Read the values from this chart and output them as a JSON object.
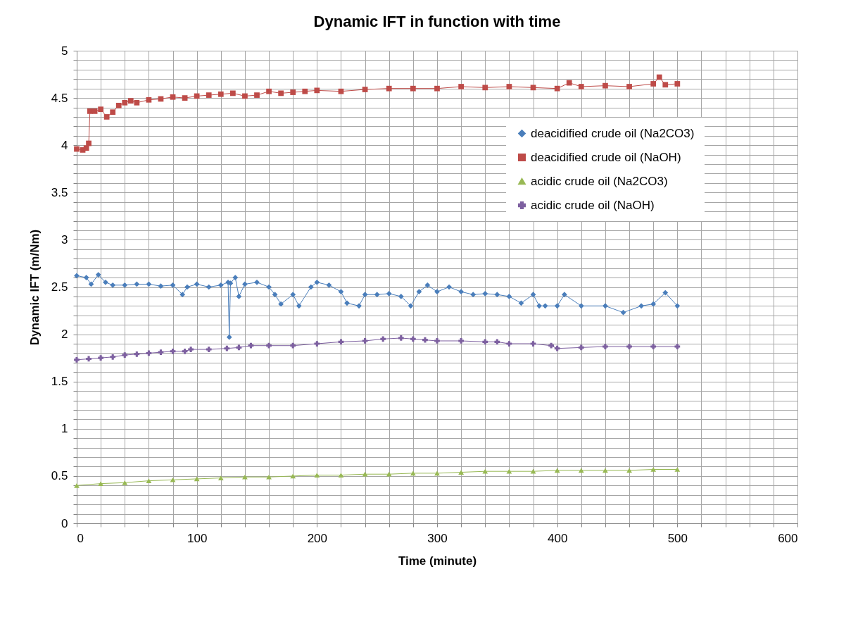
{
  "chart_data": {
    "type": "line",
    "title": "Dynamic IFT in function with time",
    "xlabel": "Time (minute)",
    "ylabel": "Dynamic IFT (m/Nm)",
    "xlim": [
      0,
      600
    ],
    "ylim": [
      0,
      5
    ],
    "xticks": [
      0,
      {
        "value": 20,
        "label": null
      },
      {
        "value": 40,
        "label": null
      },
      {
        "value": 60,
        "label": null
      },
      {
        "value": 80,
        "label": null
      },
      100,
      {
        "value": 120,
        "label": null
      },
      {
        "value": 140,
        "label": null
      },
      {
        "value": 160,
        "label": null
      },
      {
        "value": 180,
        "label": null
      },
      200,
      {
        "value": 220,
        "label": null
      },
      {
        "value": 240,
        "label": null
      },
      {
        "value": 260,
        "label": null
      },
      {
        "value": 280,
        "label": null
      },
      300,
      {
        "value": 320,
        "label": null
      },
      {
        "value": 340,
        "label": null
      },
      {
        "value": 360,
        "label": null
      },
      {
        "value": 380,
        "label": null
      },
      400,
      {
        "value": 420,
        "label": null
      },
      {
        "value": 440,
        "label": null
      },
      {
        "value": 460,
        "label": null
      },
      {
        "value": 480,
        "label": null
      },
      500,
      {
        "value": 520,
        "label": null
      },
      {
        "value": 540,
        "label": null
      },
      {
        "value": 560,
        "label": null
      },
      {
        "value": 580,
        "label": null
      },
      600
    ],
    "yticks": [
      0,
      {
        "value": 0.1,
        "label": null
      },
      {
        "value": 0.2,
        "label": null
      },
      {
        "value": 0.3,
        "label": null
      },
      {
        "value": 0.4,
        "label": null
      },
      0.5,
      {
        "value": 0.6,
        "label": null
      },
      {
        "value": 0.7,
        "label": null
      },
      {
        "value": 0.8,
        "label": null
      },
      {
        "value": 0.9,
        "label": null
      },
      1,
      {
        "value": 1.1,
        "label": null
      },
      {
        "value": 1.2,
        "label": null
      },
      {
        "value": 1.3,
        "label": null
      },
      {
        "value": 1.4,
        "label": null
      },
      1.5,
      {
        "value": 1.6,
        "label": null
      },
      {
        "value": 1.7,
        "label": null
      },
      {
        "value": 1.8,
        "label": null
      },
      {
        "value": 1.9,
        "label": null
      },
      2,
      {
        "value": 2.1,
        "label": null
      },
      {
        "value": 2.2,
        "label": null
      },
      {
        "value": 2.3,
        "label": null
      },
      {
        "value": 2.4,
        "label": null
      },
      2.5,
      {
        "value": 2.6,
        "label": null
      },
      {
        "value": 2.7,
        "label": null
      },
      {
        "value": 2.8,
        "label": null
      },
      {
        "value": 2.9,
        "label": null
      },
      3,
      {
        "value": 3.1,
        "label": null
      },
      {
        "value": 3.2,
        "label": null
      },
      {
        "value": 3.3,
        "label": null
      },
      {
        "value": 3.4,
        "label": null
      },
      3.5,
      {
        "value": 3.6,
        "label": null
      },
      {
        "value": 3.7,
        "label": null
      },
      {
        "value": 3.8,
        "label": null
      },
      {
        "value": 3.9,
        "label": null
      },
      4,
      {
        "value": 4.1,
        "label": null
      },
      {
        "value": 4.2,
        "label": null
      },
      {
        "value": 4.3,
        "label": null
      },
      {
        "value": 4.4,
        "label": null
      },
      4.5,
      {
        "value": 4.6,
        "label": null
      },
      {
        "value": 4.7,
        "label": null
      },
      {
        "value": 4.8,
        "label": null
      },
      {
        "value": 4.9,
        "label": null
      },
      5
    ],
    "grid": true,
    "legend": "right",
    "line_style": "solid",
    "series": [
      {
        "name": "deacidified crude oil (Na2CO3)",
        "color": "#4a7ebb",
        "marker": "diamond",
        "x": [
          0,
          8,
          12,
          18,
          24,
          30,
          40,
          50,
          60,
          70,
          80,
          88,
          92,
          100,
          110,
          120,
          126,
          127,
          128,
          132,
          135,
          140,
          150,
          160,
          165,
          170,
          180,
          185,
          195,
          200,
          210,
          220,
          225,
          235,
          240,
          250,
          260,
          270,
          278,
          285,
          292,
          300,
          310,
          320,
          330,
          340,
          350,
          360,
          370,
          380,
          385,
          390,
          400,
          406,
          420,
          440,
          455,
          470,
          480,
          490,
          500
        ],
        "values": [
          2.62,
          2.6,
          2.53,
          2.63,
          2.55,
          2.52,
          2.52,
          2.53,
          2.53,
          2.51,
          2.52,
          2.42,
          2.5,
          2.53,
          2.5,
          2.52,
          2.55,
          1.97,
          2.54,
          2.6,
          2.4,
          2.53,
          2.55,
          2.5,
          2.42,
          2.32,
          2.42,
          2.3,
          2.5,
          2.55,
          2.52,
          2.45,
          2.33,
          2.3,
          2.42,
          2.42,
          2.43,
          2.4,
          2.3,
          2.45,
          2.52,
          2.45,
          2.5,
          2.45,
          2.42,
          2.43,
          2.42,
          2.4,
          2.33,
          2.42,
          2.3,
          2.3,
          2.3,
          2.42,
          2.3,
          2.3,
          2.23,
          2.3,
          2.32,
          2.44,
          2.3
        ]
      },
      {
        "name": "deacidified crude oil (NaOH)",
        "color": "#be4b48",
        "marker": "square",
        "x": [
          0,
          5,
          8,
          10,
          11,
          15,
          20,
          25,
          30,
          35,
          40,
          45,
          50,
          60,
          70,
          80,
          90,
          100,
          110,
          120,
          130,
          140,
          150,
          160,
          170,
          180,
          190,
          200,
          220,
          240,
          260,
          280,
          300,
          320,
          340,
          360,
          380,
          400,
          410,
          420,
          440,
          460,
          480,
          485,
          490,
          500
        ],
        "values": [
          3.96,
          3.95,
          3.97,
          4.02,
          4.36,
          4.36,
          4.38,
          4.3,
          4.35,
          4.42,
          4.45,
          4.47,
          4.45,
          4.48,
          4.49,
          4.51,
          4.5,
          4.52,
          4.53,
          4.54,
          4.55,
          4.52,
          4.53,
          4.57,
          4.55,
          4.56,
          4.57,
          4.58,
          4.57,
          4.59,
          4.6,
          4.6,
          4.6,
          4.62,
          4.61,
          4.62,
          4.61,
          4.6,
          4.66,
          4.62,
          4.63,
          4.62,
          4.65,
          4.72,
          4.64,
          4.65
        ]
      },
      {
        "name": "acidic crude oil (Na2CO3)",
        "color": "#98b954",
        "marker": "triangle",
        "x": [
          0,
          20,
          40,
          60,
          80,
          100,
          120,
          140,
          160,
          180,
          200,
          220,
          240,
          260,
          280,
          300,
          320,
          340,
          360,
          380,
          400,
          420,
          440,
          460,
          480,
          500
        ],
        "values": [
          0.4,
          0.42,
          0.43,
          0.45,
          0.46,
          0.47,
          0.48,
          0.49,
          0.49,
          0.5,
          0.51,
          0.51,
          0.52,
          0.52,
          0.53,
          0.53,
          0.54,
          0.55,
          0.55,
          0.55,
          0.56,
          0.56,
          0.56,
          0.56,
          0.57,
          0.57
        ]
      },
      {
        "name": "acidic crude oil (NaOH)",
        "color": "#7d60a0",
        "marker": "cross",
        "x": [
          0,
          10,
          20,
          30,
          40,
          50,
          60,
          70,
          80,
          90,
          95,
          110,
          125,
          135,
          145,
          160,
          180,
          200,
          220,
          240,
          255,
          270,
          280,
          290,
          300,
          320,
          340,
          350,
          360,
          380,
          395,
          400,
          420,
          440,
          460,
          480,
          500
        ],
        "values": [
          1.73,
          1.74,
          1.75,
          1.76,
          1.78,
          1.79,
          1.8,
          1.81,
          1.82,
          1.82,
          1.84,
          1.84,
          1.85,
          1.86,
          1.88,
          1.88,
          1.88,
          1.9,
          1.92,
          1.93,
          1.95,
          1.96,
          1.95,
          1.94,
          1.93,
          1.93,
          1.92,
          1.92,
          1.9,
          1.9,
          1.88,
          1.85,
          1.86,
          1.87,
          1.87,
          1.87,
          1.87
        ]
      }
    ]
  }
}
